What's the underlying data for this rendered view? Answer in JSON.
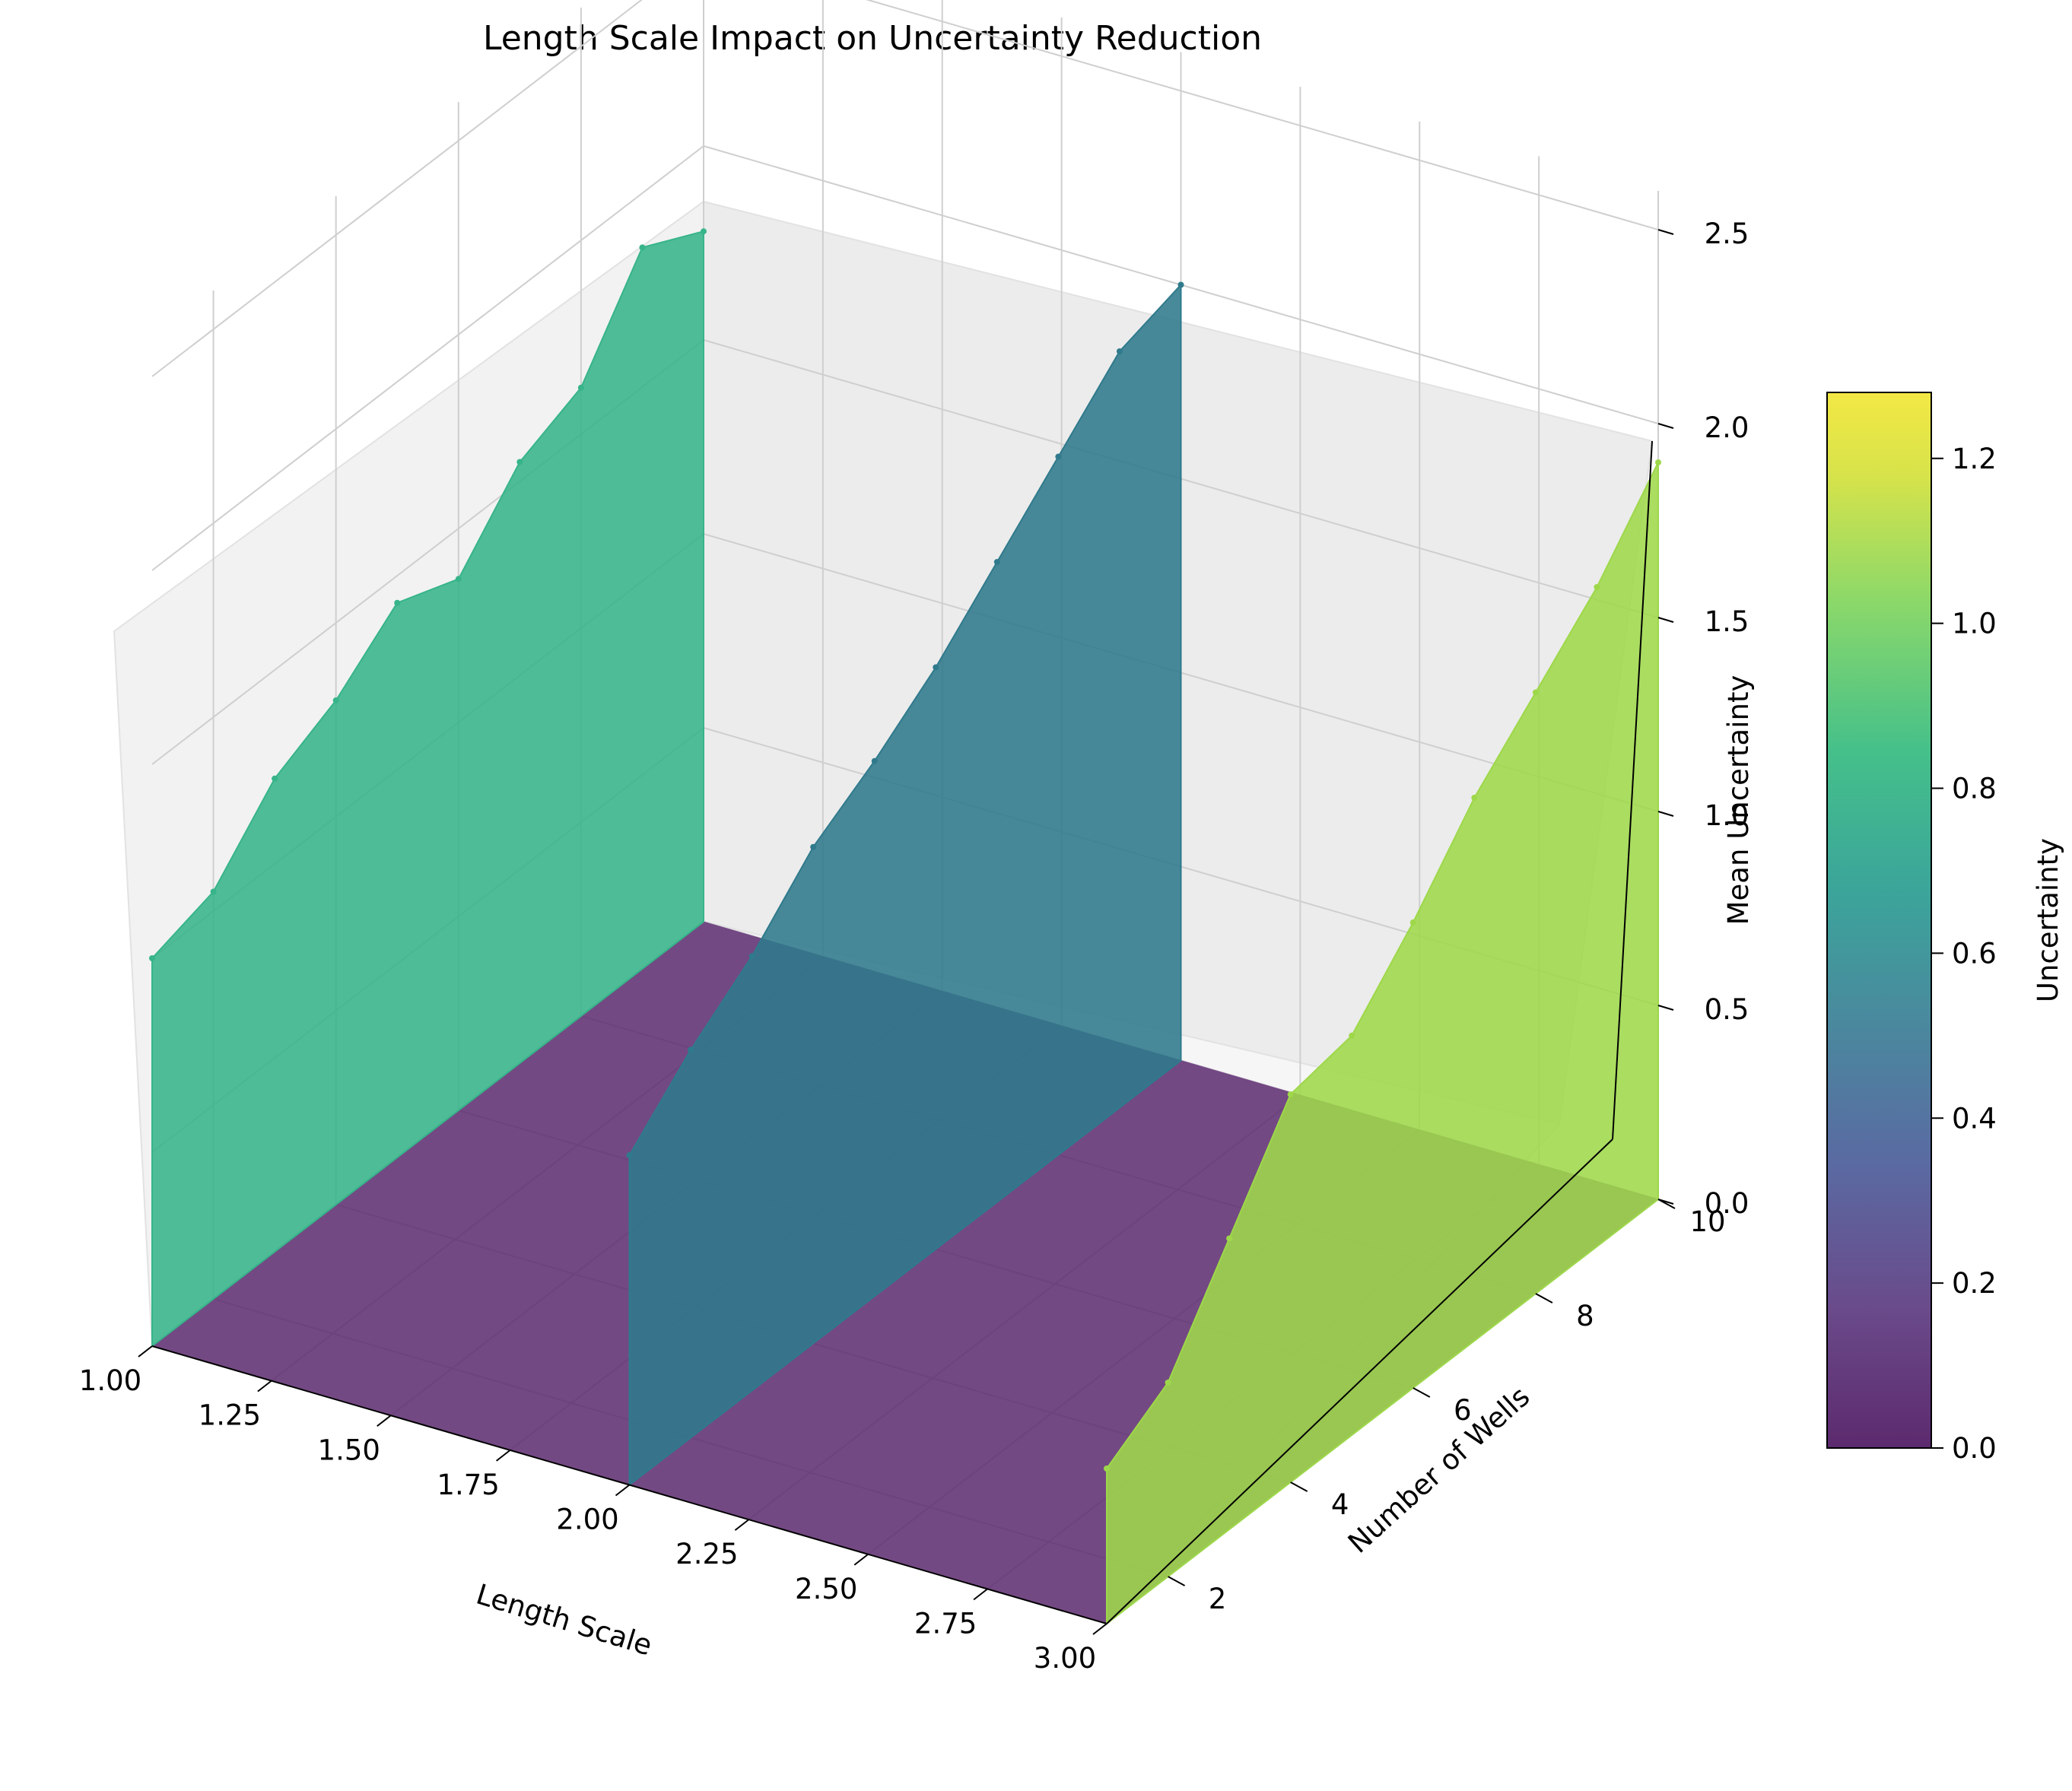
{
  "chart_data": {
    "type": "surface3d",
    "title": "Length Scale Impact on Uncertainty Reduction",
    "xlabel": "Length Scale",
    "ylabel": "Number of Wells",
    "zlabel": "Mean Uncertainty",
    "colorbar_label": "Uncertainty",
    "colormap": "viridis",
    "xlim": [
      1.0,
      3.0
    ],
    "ylim": [
      1,
      10
    ],
    "zlim": [
      0,
      2.6
    ],
    "x_ticks": [
      "1.00",
      "1.25",
      "1.50",
      "1.75",
      "2.00",
      "2.25",
      "2.50",
      "2.75",
      "3.00"
    ],
    "y_ticks": [
      "2",
      "4",
      "6",
      "8",
      "10"
    ],
    "z_ticks": [
      "0.0",
      "0.5",
      "1.0",
      "1.5",
      "2.0",
      "2.5"
    ],
    "colorbar_ticks": [
      "0.0",
      "0.2",
      "0.4",
      "0.6",
      "0.8",
      "1.0",
      "1.2"
    ],
    "colorbar_range": [
      0,
      1.28
    ],
    "grid": true,
    "series": [
      {
        "length_scale": 1.0,
        "wells": [
          1,
          2,
          3,
          4,
          5,
          6,
          7,
          8,
          9,
          10
        ],
        "values": [
          1.0,
          1.05,
          1.22,
          1.3,
          1.43,
          1.37,
          1.55,
          1.62,
          1.86,
          1.78
        ],
        "color": "#37b48a"
      },
      {
        "length_scale": 2.0,
        "wells": [
          1,
          2,
          3,
          4,
          5,
          6,
          7,
          8,
          9,
          10
        ],
        "values": [
          0.85,
          1.0,
          1.12,
          1.28,
          1.38,
          1.5,
          1.65,
          1.8,
          1.95,
          2.0
        ],
        "color": "#2f7a8c"
      },
      {
        "length_scale": 3.0,
        "wells": [
          1,
          2,
          3,
          4,
          5,
          6,
          7,
          8,
          9,
          10
        ],
        "values": [
          0.4,
          0.5,
          0.75,
          1.0,
          1.03,
          1.2,
          1.4,
          1.55,
          1.7,
          1.9
        ],
        "color": "#9ed84a"
      }
    ]
  }
}
